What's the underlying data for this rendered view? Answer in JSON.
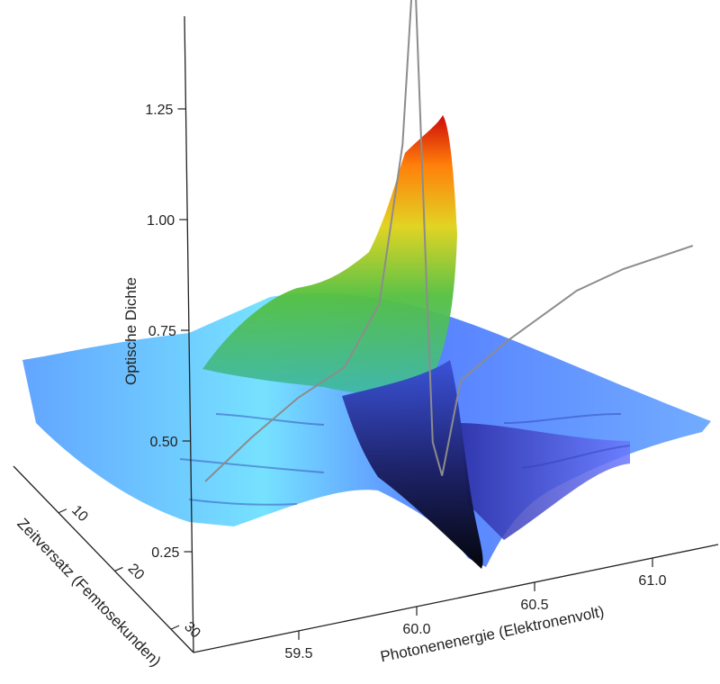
{
  "chart_data": {
    "type": "surface3d",
    "z_axis": {
      "label": "Optische Dichte",
      "ticks": [
        0.25,
        0.5,
        0.75,
        1.0,
        1.25
      ],
      "tick_labels": [
        "0.25",
        "0.50",
        "0.75",
        "1.00",
        "1.25"
      ],
      "range": [
        0.2,
        1.4
      ]
    },
    "x_axis": {
      "label": "Photonenenergie (Elektronenvolt)",
      "ticks": [
        59.5,
        60.0,
        60.5,
        61.0
      ],
      "tick_labels": [
        "59.5",
        "60.0",
        "60.5",
        "61.0"
      ],
      "range": [
        59.2,
        61.3
      ]
    },
    "y_axis": {
      "label": "Zeitversatz (Femtosekunden)",
      "ticks": [
        10,
        20,
        30
      ],
      "tick_labels": [
        "10",
        "20",
        "30"
      ],
      "range": [
        2,
        34
      ]
    },
    "surface": {
      "baseline_od": 0.55,
      "peak_od": 1.25,
      "peak_energy_ev": 60.12,
      "peak_delay_fs": 34,
      "min_od": 0.25,
      "min_energy_ev": 60.25,
      "colormap": [
        "#000000",
        "#2a2a8a",
        "#3a3ae0",
        "#5a8cff",
        "#66e6ff",
        "#33cc66",
        "#e6d61a",
        "#ff6a00",
        "#cc0000"
      ]
    },
    "profile_line": {
      "color": "#8c8c8c",
      "x": [
        59.2,
        59.4,
        59.6,
        59.8,
        59.95,
        60.05,
        60.1,
        60.15,
        60.18,
        60.22,
        60.3,
        60.5,
        60.8,
        61.0,
        61.3
      ],
      "y": [
        0.35,
        0.42,
        0.48,
        0.52,
        0.64,
        0.98,
        1.4,
        0.7,
        0.3,
        0.22,
        0.42,
        0.48,
        0.55,
        0.57,
        0.58
      ]
    }
  }
}
